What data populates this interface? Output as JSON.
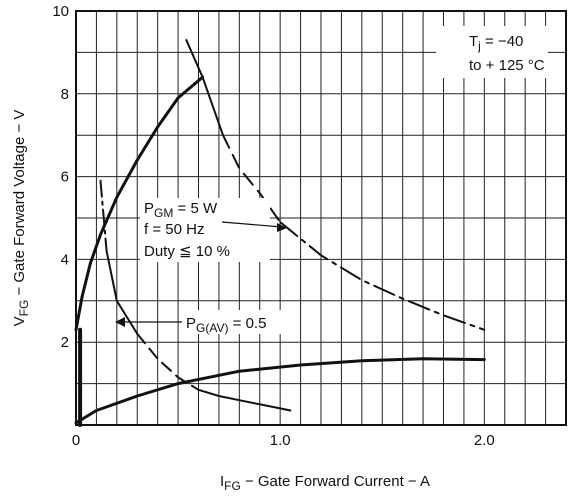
{
  "chart_data": {
    "type": "line",
    "xlabel_main": "I",
    "xlabel_sub": "FG",
    "xlabel_rest": " − Gate Forward Current − A",
    "ylabel_main": "V",
    "ylabel_sub": "FG",
    "ylabel_rest": " − Gate Forward Voltage − V",
    "xlim": [
      0,
      2.4
    ],
    "ylim": [
      0,
      10
    ],
    "x_ticks": [
      {
        "value": 0,
        "label": "0"
      },
      {
        "value": 1.0,
        "label": "1.0"
      },
      {
        "value": 2.0,
        "label": "2.0"
      }
    ],
    "y_ticks": [
      {
        "value": 0,
        "label": ""
      },
      {
        "value": 2,
        "label": "2"
      },
      {
        "value": 4,
        "label": "4"
      },
      {
        "value": 6,
        "label": "6"
      },
      {
        "value": 8,
        "label": "8"
      },
      {
        "value": 10,
        "label": "10"
      }
    ],
    "grid": true,
    "annotations": {
      "tj_line1_main": "T",
      "tj_line1_sub": "j",
      "tj_line1_rest": " = −40",
      "tj_line2": "to + 125 °C",
      "pgm_main": "P",
      "pgm_sub": "GM",
      "pgm_rest": " = 5 W",
      "freq": "f = 50 Hz",
      "duty": "Duty ≦ 10 %",
      "pgav_main": "P",
      "pgav_sub": "G(AV)",
      "pgav_rest": " = 0.5"
    },
    "series": [
      {
        "role": "upper_limit",
        "values": [
          [
            0.0,
            2.3
          ],
          [
            0.03,
            3.1
          ],
          [
            0.07,
            3.9
          ],
          [
            0.12,
            4.6
          ],
          [
            0.2,
            5.5
          ],
          [
            0.3,
            6.4
          ],
          [
            0.4,
            7.2
          ],
          [
            0.5,
            7.9
          ],
          [
            0.62,
            8.4
          ]
        ]
      },
      {
        "role": "peak_power_5W",
        "values": [
          [
            0.54,
            9.3
          ],
          [
            0.62,
            8.4
          ],
          [
            0.72,
            7.0
          ],
          [
            0.8,
            6.2
          ],
          [
            0.9,
            5.6
          ],
          [
            1.0,
            4.9
          ],
          [
            1.2,
            4.1
          ],
          [
            1.4,
            3.5
          ],
          [
            1.6,
            3.05
          ],
          [
            1.8,
            2.65
          ],
          [
            2.0,
            2.3
          ]
        ]
      },
      {
        "role": "average_power_0.5W",
        "values": [
          [
            0.12,
            5.9
          ],
          [
            0.15,
            4.2
          ],
          [
            0.2,
            3.0
          ],
          [
            0.3,
            2.2
          ],
          [
            0.4,
            1.6
          ],
          [
            0.5,
            1.15
          ],
          [
            0.6,
            0.85
          ],
          [
            0.7,
            0.7
          ],
          [
            0.8,
            0.6
          ],
          [
            1.0,
            0.4
          ],
          [
            1.05,
            0.35
          ]
        ]
      },
      {
        "role": "lower_limit",
        "values": [
          [
            0.0,
            0.05
          ],
          [
            0.1,
            0.35
          ],
          [
            0.3,
            0.7
          ],
          [
            0.5,
            1.0
          ],
          [
            0.8,
            1.3
          ],
          [
            1.1,
            1.45
          ],
          [
            1.4,
            1.55
          ],
          [
            1.7,
            1.6
          ],
          [
            2.0,
            1.58
          ]
        ]
      },
      {
        "role": "vertical_segment",
        "values": [
          [
            0.02,
            0.0
          ],
          [
            0.02,
            2.3
          ]
        ]
      }
    ]
  }
}
